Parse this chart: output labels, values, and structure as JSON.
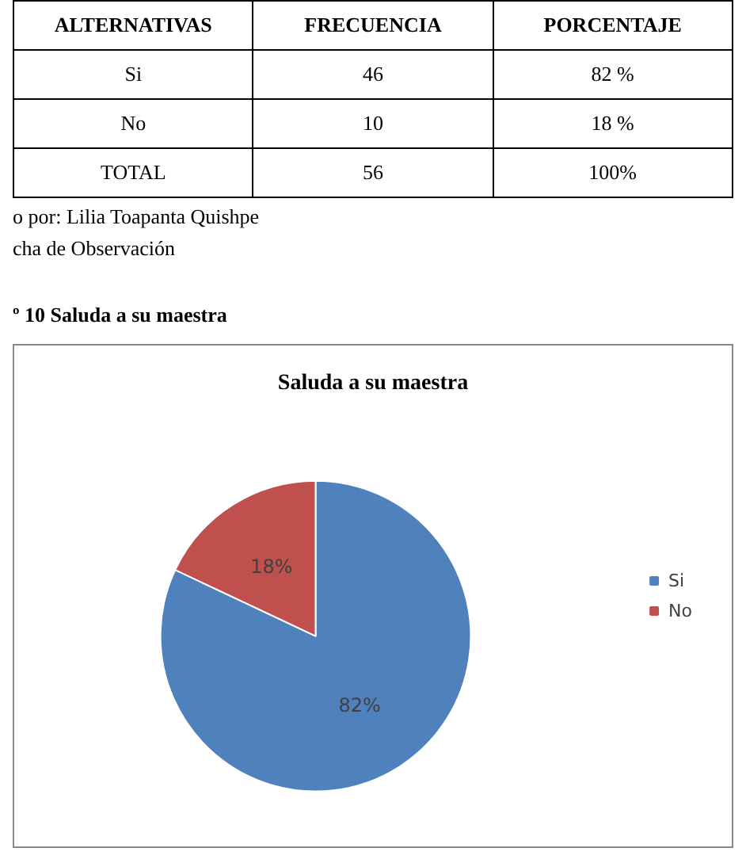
{
  "chart_data": {
    "type": "pie",
    "title": "Saluda a su maestra",
    "categories": [
      "Si",
      "No"
    ],
    "values": [
      82,
      18
    ],
    "value_labels": [
      "82%",
      "18%"
    ],
    "colors": [
      "#4f81bd",
      "#c0504d"
    ],
    "legend": "right",
    "annotations": [
      "ALTERNATIVAS",
      "FRECUENCIA",
      "PORCENTAJE",
      "Si",
      "46",
      "82 %",
      "No",
      "10",
      "18 %",
      "TOTAL",
      "56",
      "100%",
      "o  por: Lilia Toapanta Quishpe",
      "cha de Observación",
      "º 10 Saluda a su maestra"
    ]
  }
}
